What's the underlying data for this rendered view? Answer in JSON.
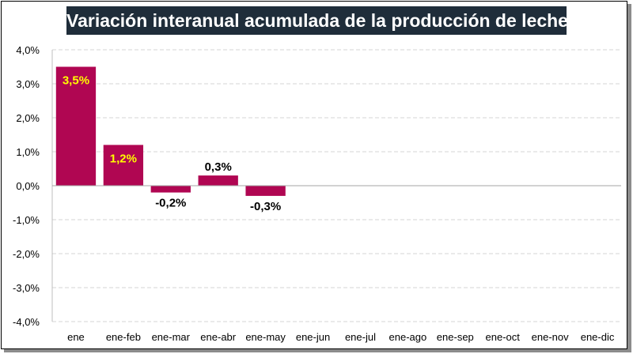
{
  "chart_data": {
    "type": "bar",
    "title": "Variación interanual acumulada de la producción de leche",
    "categories": [
      "ene",
      "ene-feb",
      "ene-mar",
      "ene-abr",
      "ene-may",
      "ene-jun",
      "ene-jul",
      "ene-ago",
      "ene-sep",
      "ene-oct",
      "ene-nov",
      "ene-dic"
    ],
    "values": [
      3.5,
      1.2,
      -0.2,
      0.3,
      -0.3,
      null,
      null,
      null,
      null,
      null,
      null,
      null
    ],
    "data_labels": [
      "3,5%",
      "1,2%",
      "-0,2%",
      "0,3%",
      "-0,3%",
      "",
      "",
      "",
      "",
      "",
      "",
      ""
    ],
    "yticks": [
      "4,0%",
      "3,0%",
      "2,0%",
      "1,0%",
      "0,0%",
      "-1,0%",
      "-2,0%",
      "-3,0%",
      "-4,0%"
    ],
    "ylim": [
      -4,
      4
    ],
    "grid": true,
    "bar_color": "#b00652",
    "highlight_label_color": "#ffff00",
    "label_color": "#000000"
  }
}
